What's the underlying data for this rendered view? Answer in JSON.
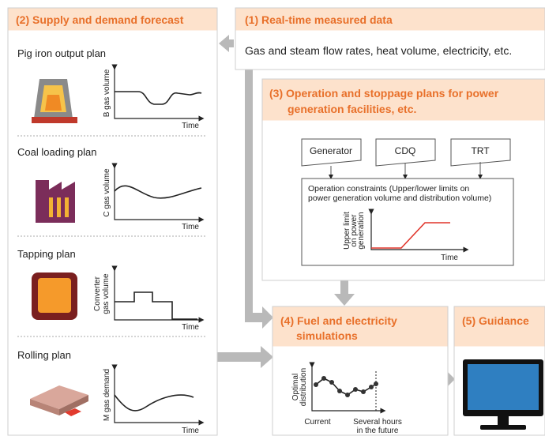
{
  "supply_demand": {
    "title": "(2) Supply and demand forecast",
    "items": [
      {
        "label": "Pig iron output plan",
        "y_axis": [
          "B gas volume"
        ],
        "x_axis": "Time"
      },
      {
        "label": "Coal loading plan",
        "y_axis": [
          "C gas volume"
        ],
        "x_axis": "Time"
      },
      {
        "label": "Tapping plan",
        "y_axis": [
          "Converter",
          "gas volume"
        ],
        "x_axis": "Time"
      },
      {
        "label": "Rolling plan",
        "y_axis": [
          "M gas demand"
        ],
        "x_axis": "Time"
      }
    ]
  },
  "realtime": {
    "title": "(1) Real-time measured data",
    "body": "Gas and steam flow rates, heat volume, electricity, etc."
  },
  "operation_plans": {
    "title_lines": [
      "(3) Operation and stoppage plans for power",
      "generation facilities, etc."
    ],
    "facilities": [
      "Generator",
      "CDQ",
      "TRT"
    ],
    "constraints_lines": [
      "Operation constraints (Upper/lower limits on",
      "power generation volume and distribution volume)"
    ],
    "chart": {
      "y_axis": [
        "Upper limit",
        "on power",
        "generation"
      ],
      "x_axis": "Time"
    }
  },
  "simulations": {
    "title_lines": [
      "(4) Fuel and electricity",
      "simulations"
    ],
    "chart": {
      "y_axis": [
        "Optimal",
        "distribution"
      ],
      "x_start": "Current",
      "x_end": [
        "Several hours",
        "in the future"
      ]
    }
  },
  "guidance": {
    "title": "(5) Guidance"
  }
}
